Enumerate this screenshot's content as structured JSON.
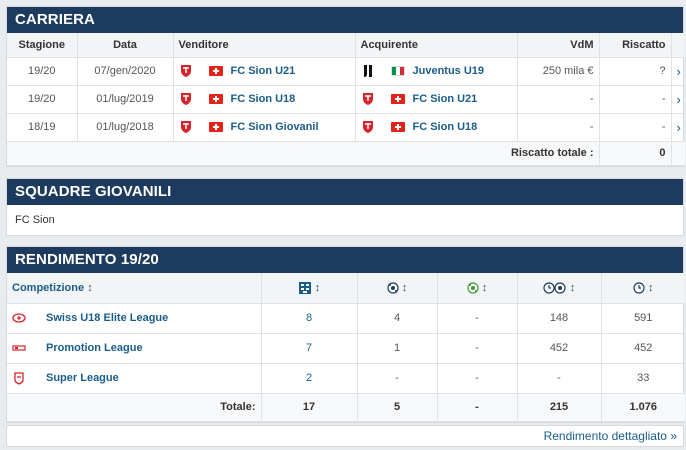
{
  "career": {
    "title": "CARRIERA",
    "headers": {
      "season": "Stagione",
      "date": "Data",
      "seller": "Venditore",
      "buyer": "Acquirente",
      "value": "VdM",
      "buyback": "Riscatto"
    },
    "rows": [
      {
        "season": "19/20",
        "date": "07/gen/2020",
        "from": "FC Sion U21",
        "to": "Juventus U19",
        "value": "250 mila €",
        "buyback": "?"
      },
      {
        "season": "19/20",
        "date": "01/lug/2019",
        "from": "FC Sion U18",
        "to": "FC Sion U21",
        "value": "-",
        "buyback": "-"
      },
      {
        "season": "18/19",
        "date": "01/lug/2018",
        "from": "FC Sion Giovanil",
        "to": "FC Sion U18",
        "value": "-",
        "buyback": "-"
      }
    ],
    "total_label": "Riscatto totale :",
    "total_value": "0"
  },
  "youth": {
    "title": "SQUADRE GIOVANILI",
    "text": "FC Sion"
  },
  "stats": {
    "title": "RENDIMENTO 19/20",
    "competition_header": "Competizione",
    "sort_glyph": "↕",
    "rows": [
      {
        "competition": "Swiss U18 Elite League",
        "apps": "8",
        "goals": "4",
        "assists": "-",
        "min_per_goal": "148",
        "minutes": "591"
      },
      {
        "competition": "Promotion League",
        "apps": "7",
        "goals": "1",
        "assists": "-",
        "min_per_goal": "452",
        "minutes": "452"
      },
      {
        "competition": "Super League",
        "apps": "2",
        "goals": "-",
        "assists": "-",
        "min_per_goal": "-",
        "minutes": "33"
      }
    ],
    "total_label": "Totale:",
    "totals": {
      "apps": "17",
      "goals": "5",
      "assists": "-",
      "min_per_goal": "215",
      "minutes": "1.076"
    }
  },
  "footer": {
    "detail_link": "Rendimento dettagliato »"
  },
  "chevron": "›",
  "icons": [
    "sion-crest-icon",
    "juventus-crest-icon",
    "swiss-flag-icon",
    "italy-flag-icon",
    "lineup-icon",
    "ball-icon",
    "assist-ball-icon",
    "clock-ball-icon",
    "clock-icon",
    "chevron-right-icon"
  ]
}
